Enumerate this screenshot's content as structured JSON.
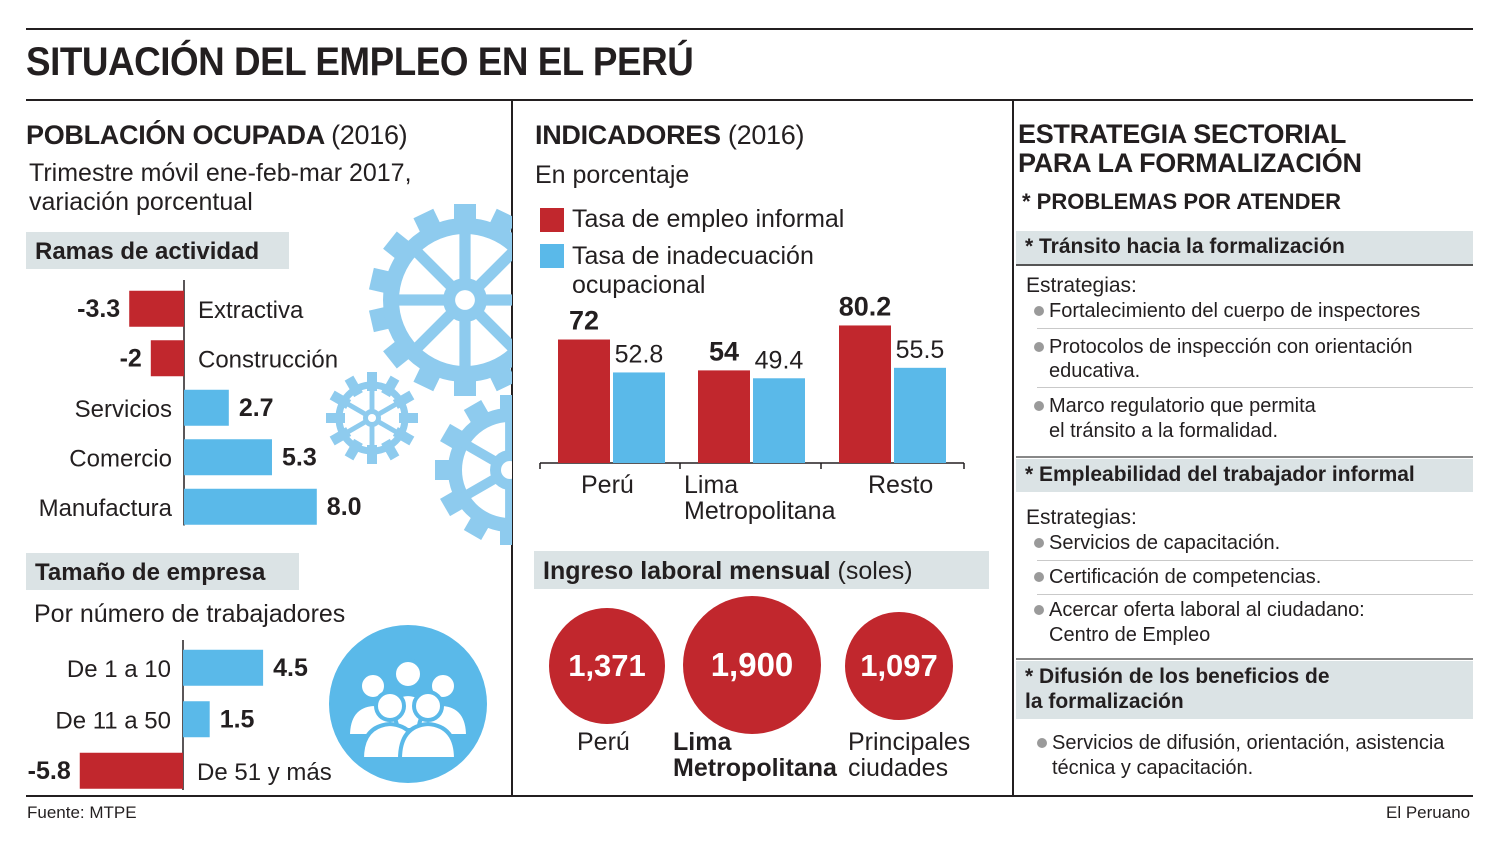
{
  "title": "SITUACIÓN DEL EMPLEO EN EL PERÚ",
  "colors": {
    "red": "#c1272d",
    "blue": "#5ab9e9",
    "band": "#dbe3e5",
    "gear": "#8ecbee"
  },
  "left": {
    "heading": "POBLACIÓN OCUPADA",
    "heading_year": "(2016)",
    "subtitle_line1": "Trimestre móvil ene-feb-mar 2017,",
    "subtitle_line2": "variación porcentual",
    "ramas_title": "Ramas de actividad",
    "tamano_title": "Tamaño de empresa",
    "tamano_subtitle": "Por número de trabajadores",
    "gear_icon": "gear-icon",
    "people_icon": "group-icon"
  },
  "middle": {
    "heading": "INDICADORES",
    "heading_year": "(2016)",
    "subtitle": "En porcentaje",
    "legend_informal": "Tasa de empleo informal",
    "legend_inadec_line1": "Tasa de inadecuación",
    "legend_inadec_line2": "ocupacional",
    "cat_peru": "Perú",
    "cat_lima_line1": "Lima",
    "cat_lima_line2": "Metropolitana",
    "cat_resto": "Resto",
    "ingreso_title": "Ingreso laboral mensual",
    "ingreso_unit": "(soles)",
    "inc_peru_value": "1,371",
    "inc_peru_label": "Perú",
    "inc_lima_value": "1,900",
    "inc_lima_label_line1": "Lima",
    "inc_lima_label_line2": "Metropolitana",
    "inc_ciud_value": "1,097",
    "inc_ciud_label_line1": "Principales",
    "inc_ciud_label_line2": "ciudades"
  },
  "right": {
    "heading_line1": "ESTRATEGIA SECTORIAL",
    "heading_line2": "PARA LA FORMALIZACIÓN",
    "problems": "* PROBLEMAS POR ATENDER",
    "p1_title": "* Tránsito hacia la formalización",
    "p1_strat": "Estrategias:",
    "p1_i1": "Fortalecimiento del cuerpo de inspectores",
    "p1_i2_l1": "Protocolos de inspección con orientación",
    "p1_i2_l2": "educativa.",
    "p1_i3_l1": "Marco regulatorio que permita",
    "p1_i3_l2": "el tránsito a la formalidad.",
    "p2_title": "* Empleabilidad del trabajador informal",
    "p2_strat": "Estrategias:",
    "p2_i1": "Servicios de capacitación.",
    "p2_i2": "Certificación de competencias.",
    "p2_i3_l1": "Acercar oferta laboral al ciudadano:",
    "p2_i3_l2": "Centro de Empleo",
    "p3_title_l1": "* Difusión de los beneficios de",
    "p3_title_l2": "la formalización",
    "p3_i1_l1": "Servicios de difusión, orientación, asistencia",
    "p3_i1_l2": "técnica y capacitación."
  },
  "footer": {
    "source": "Fuente: MTPE",
    "publisher": "El Peruano"
  },
  "chart_data": [
    {
      "type": "bar",
      "title": "Ramas de actividad",
      "orientation": "horizontal",
      "categories": [
        "Extractiva",
        "Construcción",
        "Servicios",
        "Comercio",
        "Manufactura"
      ],
      "values": [
        -3.3,
        -2,
        2.7,
        5.3,
        8.0
      ],
      "labels": [
        "-3.3",
        "-2",
        "2.7",
        "5.3",
        "8.0"
      ]
    },
    {
      "type": "bar",
      "title": "Tamaño de empresa",
      "orientation": "horizontal",
      "categories": [
        "De 1 a 10",
        "De 11 a 50",
        "De 51 y más"
      ],
      "values": [
        4.5,
        1.5,
        -5.8
      ],
      "labels": [
        "4.5",
        "1.5",
        "-5.8"
      ]
    },
    {
      "type": "bar",
      "title": "INDICADORES (2016)",
      "categories": [
        "Perú",
        "Lima Metropolitana",
        "Resto"
      ],
      "series": [
        {
          "name": "Tasa de empleo informal",
          "values": [
            72,
            54,
            80.2
          ],
          "labels": [
            "72",
            "54",
            "80.2"
          ]
        },
        {
          "name": "Tasa de inadecuación ocupacional",
          "values": [
            52.8,
            49.4,
            55.5
          ],
          "labels": [
            "52.8",
            "49.4",
            "55.5"
          ]
        }
      ]
    },
    {
      "type": "bubble",
      "title": "Ingreso laboral mensual",
      "categories": [
        "Perú",
        "Lima Metropolitana",
        "Principales ciudades"
      ],
      "values": [
        1371,
        1900,
        1097
      ]
    }
  ]
}
